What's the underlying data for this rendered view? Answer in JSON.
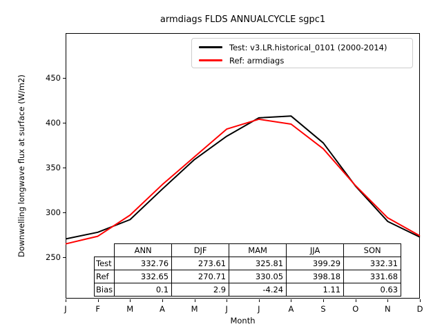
{
  "title": "armdiags FLDS ANNUALCYCLE sgpc1",
  "axes": {
    "ylabel": "Downwelling longwave flux at surface (W/m2)",
    "xlabel": "Month"
  },
  "legend": {
    "items": [
      {
        "label": "Test: v3.LR.historical_0101 (2000-2014)",
        "color": "#000000"
      },
      {
        "label": "Ref: armdiags",
        "color": "#ff0000"
      }
    ]
  },
  "chart_data": {
    "type": "line",
    "title": "armdiags FLDS ANNUALCYCLE sgpc1",
    "xlabel": "Month",
    "ylabel": "Downwelling longwave flux at surface (W/m2)",
    "x_categories": [
      "J",
      "F",
      "M",
      "A",
      "M",
      "J",
      "J",
      "A",
      "S",
      "O",
      "N",
      "D"
    ],
    "ylim": [
      204,
      500
    ],
    "yticks": [
      250,
      300,
      350,
      400,
      450
    ],
    "grid": false,
    "legend_position": "upper right",
    "series": [
      {
        "name": "Test: v3.LR.historical_0101 (2000-2014)",
        "color": "#000000",
        "values": [
          270.5,
          278.0,
          292.0,
          326.0,
          359.0,
          385.0,
          405.5,
          407.5,
          377.5,
          329.5,
          290.0,
          272.5
        ]
      },
      {
        "name": "Ref: armdiags",
        "color": "#ff0000",
        "values": [
          265.0,
          273.5,
          297.0,
          331.0,
          362.0,
          393.0,
          404.0,
          398.5,
          371.0,
          330.0,
          294.0,
          274.0
        ]
      }
    ]
  },
  "table": {
    "column_headers": [
      "ANN",
      "DJF",
      "MAM",
      "JJA",
      "SON"
    ],
    "rows": [
      {
        "label": "Test",
        "values": [
          "332.76",
          "273.61",
          "325.81",
          "399.29",
          "332.31"
        ]
      },
      {
        "label": "Ref",
        "values": [
          "332.65",
          "270.71",
          "330.05",
          "398.18",
          "331.68"
        ]
      },
      {
        "label": "Bias",
        "values": [
          "0.1",
          "2.9",
          "-4.24",
          "1.11",
          "0.63"
        ]
      }
    ]
  }
}
